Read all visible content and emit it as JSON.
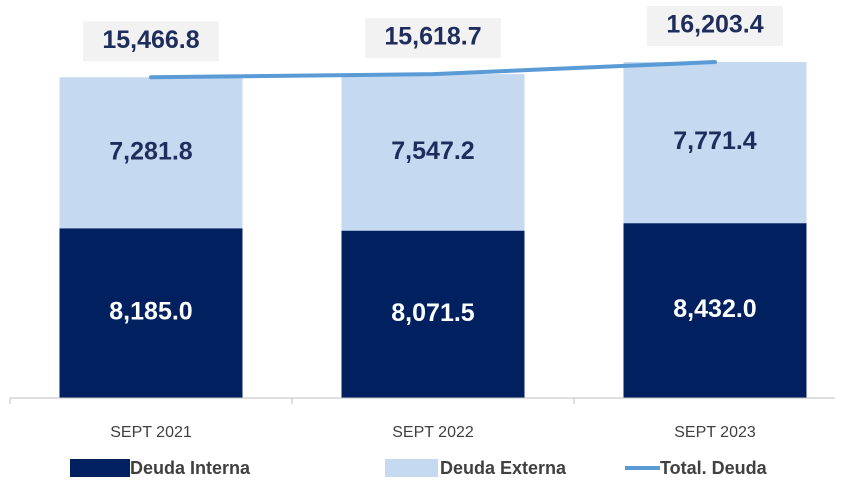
{
  "chart_data": {
    "type": "bar",
    "categories": [
      "SEPT 2021",
      "SEPT 2022",
      "SEPT 2023"
    ],
    "stacked": true,
    "series": [
      {
        "name": "Deuda Interna",
        "color": "#002060",
        "values": [
          8185.0,
          8071.5,
          8432.0
        ],
        "value_labels": [
          "8,185.0",
          "8,071.5",
          "8,432.0"
        ]
      },
      {
        "name": "Deuda Externa",
        "color": "#c5d9f1",
        "values": [
          7281.8,
          7547.2,
          7771.4
        ],
        "value_labels": [
          "7,281.8",
          "7,547.2",
          "7,771.4"
        ]
      },
      {
        "name": "Total. Deuda",
        "type": "line",
        "color": "#5b9bd5",
        "values": [
          15466.8,
          15618.7,
          16203.4
        ],
        "value_labels": [
          "15,466.8",
          "15,618.7",
          "16,203.4"
        ]
      }
    ]
  }
}
